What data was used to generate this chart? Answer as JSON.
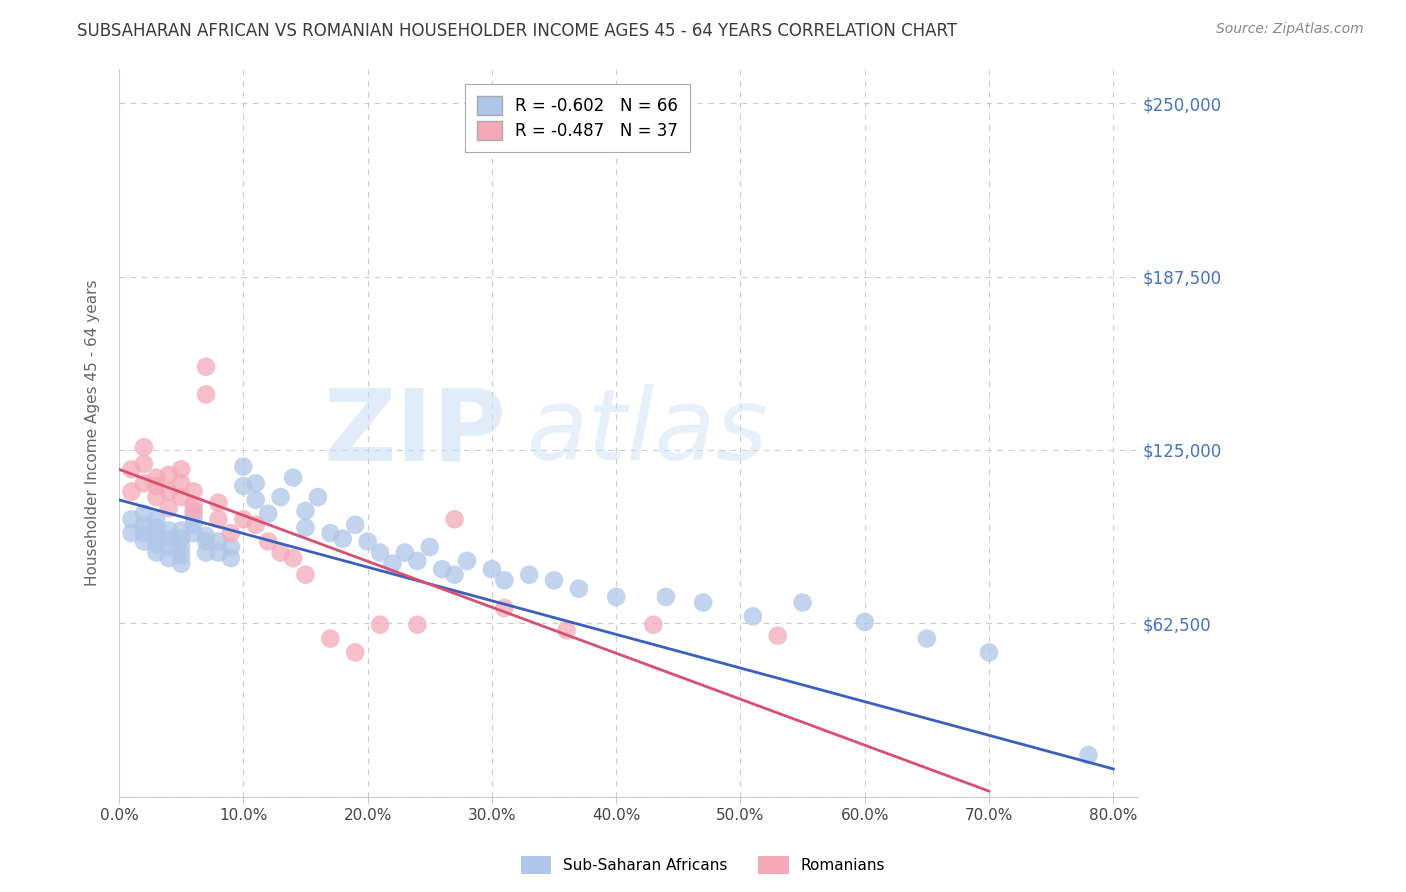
{
  "title": "SUBSAHARAN AFRICAN VS ROMANIAN HOUSEHOLDER INCOME AGES 45 - 64 YEARS CORRELATION CHART",
  "source": "Source: ZipAtlas.com",
  "xlabel_ticks": [
    "0.0%",
    "10.0%",
    "20.0%",
    "30.0%",
    "40.0%",
    "50.0%",
    "60.0%",
    "70.0%",
    "80.0%"
  ],
  "ylabel_label": "Householder Income Ages 45 - 64 years",
  "ytick_labels": [
    "$250,000",
    "$187,500",
    "$125,000",
    "$62,500"
  ],
  "ytick_values": [
    250000,
    187500,
    125000,
    62500
  ],
  "ylim": [
    0,
    262500
  ],
  "xlim": [
    0.0,
    0.82
  ],
  "legend_label1": "Sub-Saharan Africans",
  "legend_label2": "Romanians",
  "blue_label": "R = -0.602   N = 66",
  "pink_label": "R = -0.487   N = 37",
  "blue_scatter_color": "#aec6e8",
  "pink_scatter_color": "#f4a8b8",
  "blue_line_color": "#3a5fbf",
  "pink_line_color": "#d94f70",
  "title_color": "#3a3a3a",
  "source_color": "#888888",
  "axis_label_color": "#666666",
  "ytick_color": "#4472c4",
  "xtick_color": "#444444",
  "grid_color": "#cccccc",
  "blue_x": [
    0.01,
    0.01,
    0.02,
    0.02,
    0.02,
    0.02,
    0.03,
    0.03,
    0.03,
    0.03,
    0.03,
    0.04,
    0.04,
    0.04,
    0.04,
    0.05,
    0.05,
    0.05,
    0.05,
    0.05,
    0.06,
    0.06,
    0.06,
    0.07,
    0.07,
    0.07,
    0.08,
    0.08,
    0.09,
    0.09,
    0.1,
    0.1,
    0.11,
    0.11,
    0.12,
    0.13,
    0.14,
    0.15,
    0.15,
    0.16,
    0.17,
    0.18,
    0.19,
    0.2,
    0.21,
    0.22,
    0.23,
    0.24,
    0.25,
    0.26,
    0.27,
    0.28,
    0.3,
    0.31,
    0.33,
    0.35,
    0.37,
    0.4,
    0.44,
    0.47,
    0.51,
    0.55,
    0.6,
    0.65,
    0.7,
    0.78
  ],
  "blue_y": [
    100000,
    95000,
    92000,
    95000,
    98000,
    102000,
    88000,
    91000,
    94000,
    97000,
    100000,
    86000,
    90000,
    93000,
    96000,
    84000,
    87000,
    90000,
    93000,
    96000,
    95000,
    98000,
    101000,
    92000,
    88000,
    94000,
    88000,
    92000,
    86000,
    90000,
    119000,
    112000,
    107000,
    113000,
    102000,
    108000,
    115000,
    97000,
    103000,
    108000,
    95000,
    93000,
    98000,
    92000,
    88000,
    84000,
    88000,
    85000,
    90000,
    82000,
    80000,
    85000,
    82000,
    78000,
    80000,
    78000,
    75000,
    72000,
    72000,
    70000,
    65000,
    70000,
    63000,
    57000,
    52000,
    15000
  ],
  "pink_x": [
    0.01,
    0.01,
    0.02,
    0.02,
    0.02,
    0.03,
    0.03,
    0.03,
    0.04,
    0.04,
    0.04,
    0.05,
    0.05,
    0.05,
    0.06,
    0.06,
    0.06,
    0.07,
    0.07,
    0.08,
    0.08,
    0.09,
    0.1,
    0.11,
    0.12,
    0.13,
    0.14,
    0.15,
    0.17,
    0.19,
    0.21,
    0.24,
    0.27,
    0.31,
    0.36,
    0.43,
    0.53
  ],
  "pink_y": [
    110000,
    118000,
    120000,
    113000,
    126000,
    115000,
    108000,
    112000,
    104000,
    110000,
    116000,
    108000,
    113000,
    118000,
    105000,
    110000,
    103000,
    155000,
    145000,
    100000,
    106000,
    95000,
    100000,
    98000,
    92000,
    88000,
    86000,
    80000,
    57000,
    52000,
    62000,
    62000,
    100000,
    68000,
    60000,
    62000,
    58000
  ],
  "blue_line_x": [
    0.0,
    0.8
  ],
  "blue_line_y": [
    107000,
    10000
  ],
  "pink_line_x": [
    0.0,
    0.7
  ],
  "pink_line_y": [
    118000,
    2000
  ]
}
